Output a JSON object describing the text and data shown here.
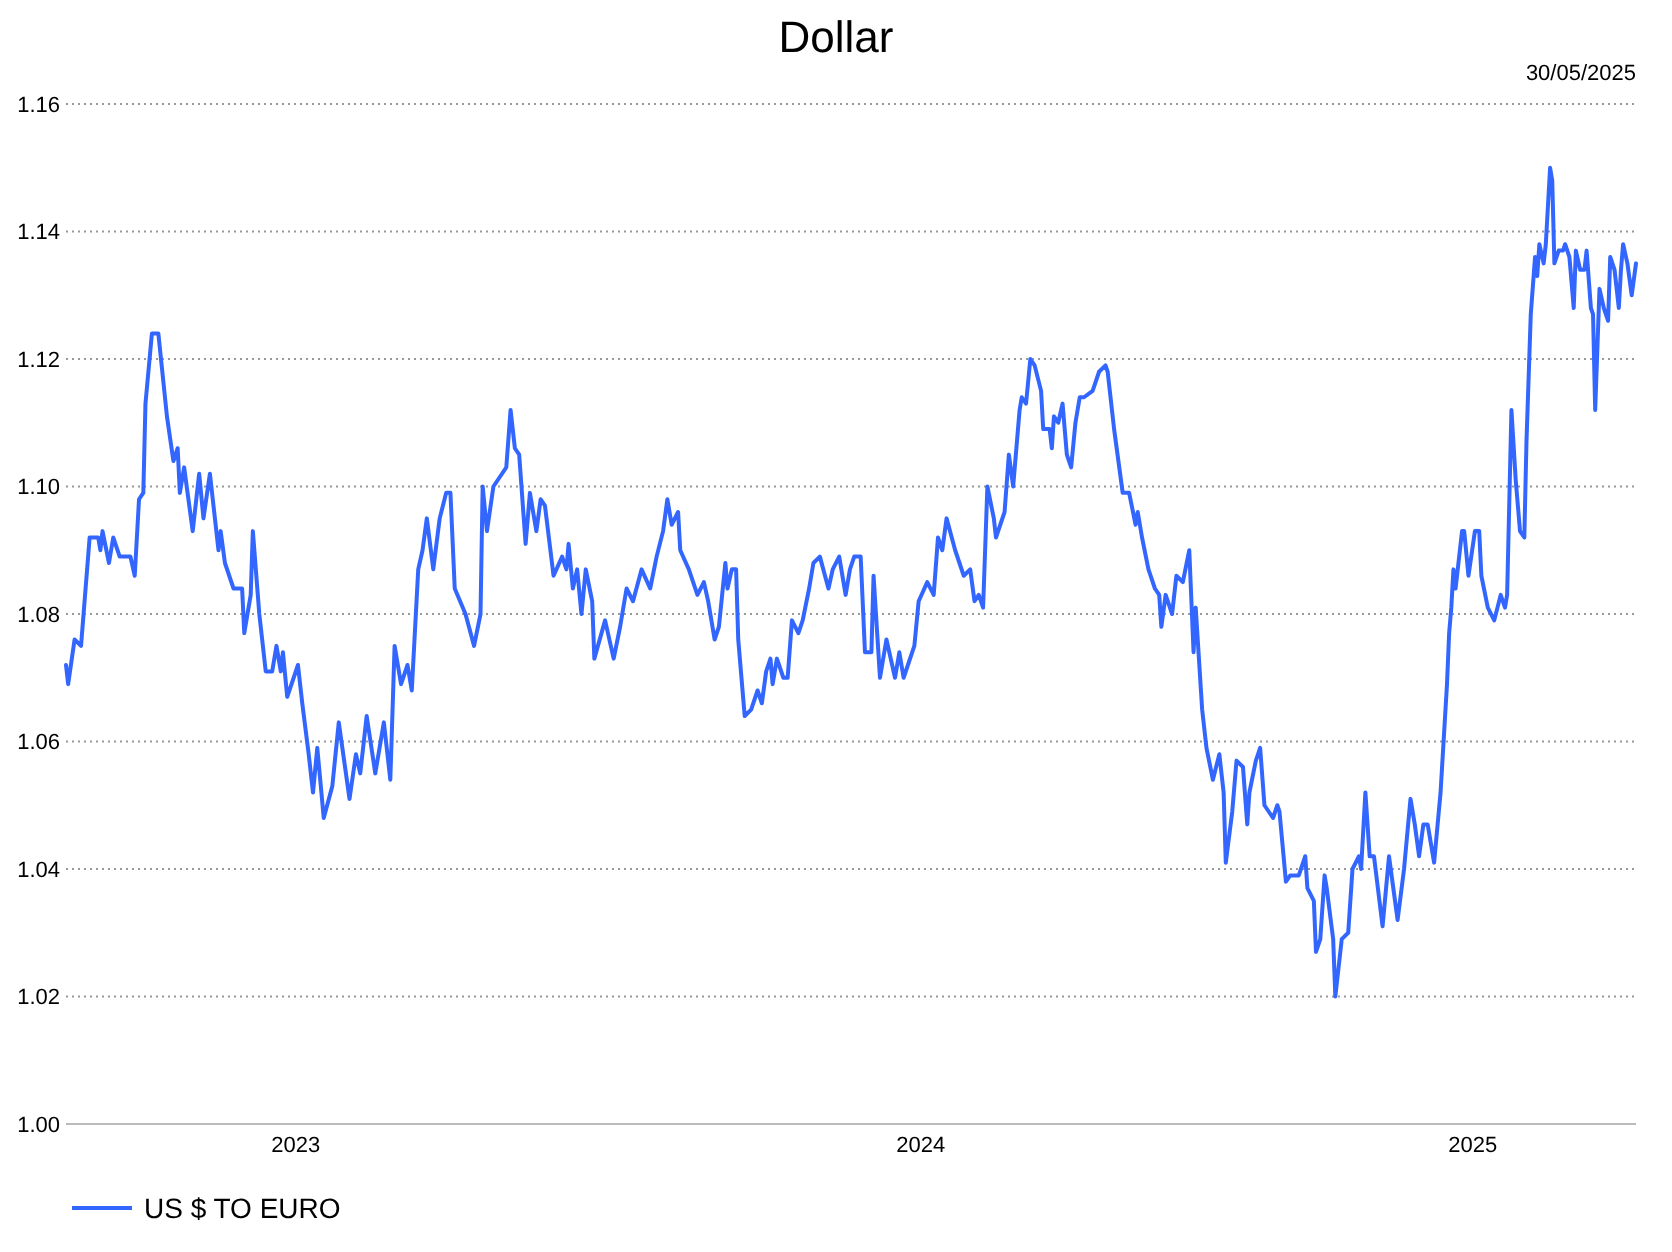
{
  "chart_data": {
    "type": "line",
    "title": "Dollar",
    "annotations": [
      "30/05/2025"
    ],
    "x": [
      "2023-05-30",
      "2023-05-31",
      "2023-06-03",
      "2023-06-06",
      "2023-06-10",
      "2023-06-14",
      "2023-06-15",
      "2023-06-16",
      "2023-06-19",
      "2023-06-21",
      "2023-06-24",
      "2023-06-29",
      "2023-07-01",
      "2023-07-03",
      "2023-07-05",
      "2023-07-06",
      "2023-07-09",
      "2023-07-12",
      "2023-07-16",
      "2023-07-19",
      "2023-07-21",
      "2023-07-22",
      "2023-07-24",
      "2023-07-28",
      "2023-07-31",
      "2023-08-02",
      "2023-08-05",
      "2023-08-09",
      "2023-08-10",
      "2023-08-12",
      "2023-08-16",
      "2023-08-20",
      "2023-08-21",
      "2023-08-24",
      "2023-08-25",
      "2023-08-28",
      "2023-08-31",
      "2023-09-03",
      "2023-09-05",
      "2023-09-07",
      "2023-09-08",
      "2023-09-10",
      "2023-09-15",
      "2023-09-17",
      "2023-09-20",
      "2023-09-22",
      "2023-09-24",
      "2023-09-27",
      "2023-10-01",
      "2023-10-04",
      "2023-10-09",
      "2023-10-12",
      "2023-10-14",
      "2023-10-17",
      "2023-10-21",
      "2023-10-25",
      "2023-10-28",
      "2023-10-30",
      "2023-11-02",
      "2023-11-05",
      "2023-11-07",
      "2023-11-10",
      "2023-11-12",
      "2023-11-14",
      "2023-11-17",
      "2023-11-20",
      "2023-11-23",
      "2023-11-25",
      "2023-11-27",
      "2023-12-02",
      "2023-12-06",
      "2023-12-09",
      "2023-12-10",
      "2023-12-12",
      "2023-12-15",
      "2023-12-19",
      "2023-12-21",
      "2023-12-23",
      "2023-12-25",
      "2023-12-27",
      "2023-12-30",
      "2024-01-01",
      "2024-01-04",
      "2024-01-06",
      "2024-01-08",
      "2024-01-12",
      "2024-01-16",
      "2024-01-18",
      "2024-01-19",
      "2024-01-21",
      "2024-01-23",
      "2024-01-25",
      "2024-01-27",
      "2024-01-30",
      "2024-01-31",
      "2024-02-05",
      "2024-02-09",
      "2024-02-12",
      "2024-02-15",
      "2024-02-18",
      "2024-02-22",
      "2024-02-26",
      "2024-02-29",
      "2024-03-03",
      "2024-03-05",
      "2024-03-07",
      "2024-03-10",
      "2024-03-11",
      "2024-03-15",
      "2024-03-19",
      "2024-03-22",
      "2024-03-24",
      "2024-03-27",
      "2024-03-29",
      "2024-04-01",
      "2024-04-02",
      "2024-04-04",
      "2024-04-06",
      "2024-04-07",
      "2024-04-10",
      "2024-04-13",
      "2024-04-16",
      "2024-04-18",
      "2024-04-20",
      "2024-04-22",
      "2024-04-23",
      "2024-04-25",
      "2024-04-28",
      "2024-04-30",
      "2024-05-02",
      "2024-05-05",
      "2024-05-07",
      "2024-05-10",
      "2024-05-12",
      "2024-05-15",
      "2024-05-19",
      "2024-05-21",
      "2024-05-24",
      "2024-05-27",
      "2024-05-29",
      "2024-05-31",
      "2024-06-03",
      "2024-06-05",
      "2024-06-08",
      "2024-06-09",
      "2024-06-12",
      "2024-06-15",
      "2024-06-19",
      "2024-06-21",
      "2024-06-23",
      "2024-06-25",
      "2024-06-28",
      "2024-06-30",
      "2024-07-04",
      "2024-07-07",
      "2024-07-09",
      "2024-07-11",
      "2024-07-13",
      "2024-07-17",
      "2024-07-21",
      "2024-07-24",
      "2024-07-26",
      "2024-07-28",
      "2024-07-30",
      "2024-08-01",
      "2024-08-04",
      "2024-08-05",
      "2024-08-09",
      "2024-08-11",
      "2024-08-13",
      "2024-08-16",
      "2024-08-17",
      "2024-08-19",
      "2024-08-21",
      "2024-08-23",
      "2024-08-26",
      "2024-08-27",
      "2024-08-30",
      "2024-08-31",
      "2024-09-01",
      "2024-09-03",
      "2024-09-05",
      "2024-09-07",
      "2024-09-09",
      "2024-09-11",
      "2024-09-13",
      "2024-09-15",
      "2024-09-19",
      "2024-09-22",
      "2024-09-25",
      "2024-09-26",
      "2024-09-29",
      "2024-10-03",
      "2024-10-06",
      "2024-10-09",
      "2024-10-10",
      "2024-10-12",
      "2024-10-15",
      "2024-10-18",
      "2024-10-20",
      "2024-10-21",
      "2024-10-23",
      "2024-10-26",
      "2024-10-28",
      "2024-10-31",
      "2024-11-03",
      "2024-11-05",
      "2024-11-06",
      "2024-11-09",
      "2024-11-11",
      "2024-11-14",
      "2024-11-17",
      "2024-11-19",
      "2024-11-20",
      "2024-11-23",
      "2024-11-25",
      "2024-11-28",
      "2024-11-30",
      "2024-12-01",
      "2024-12-04",
      "2024-12-06",
      "2024-12-08",
      "2024-12-12",
      "2024-12-14",
      "2024-12-15",
      "2024-12-18",
      "2024-12-20",
      "2024-12-24",
      "2024-12-27",
      "2024-12-28",
      "2024-12-31",
      "2025-01-01",
      "2025-01-03",
      "2025-01-05",
      "2025-01-06",
      "2025-01-09",
      "2025-01-10",
      "2025-01-13",
      "2025-01-16",
      "2025-01-18",
      "2025-01-21",
      "2025-01-22",
      "2025-01-24",
      "2025-01-26",
      "2025-01-28",
      "2025-02-01",
      "2025-02-04",
      "2025-02-06",
      "2025-02-08",
      "2025-02-11",
      "2025-02-14",
      "2025-02-16",
      "2025-02-18",
      "2025-02-20",
      "2025-02-22",
      "2025-02-25",
      "2025-02-28",
      "2025-03-03",
      "2025-03-04",
      "2025-03-05",
      "2025-03-06",
      "2025-03-07",
      "2025-03-10",
      "2025-03-11",
      "2025-03-13",
      "2025-03-16",
      "2025-03-18",
      "2025-03-19",
      "2025-03-22",
      "2025-03-25",
      "2025-03-28",
      "2025-03-30",
      "2025-03-31",
      "2025-04-02",
      "2025-04-04",
      "2025-04-06",
      "2025-04-08",
      "2025-04-09",
      "2025-04-11",
      "2025-04-13",
      "2025-04-14",
      "2025-04-15",
      "2025-04-17",
      "2025-04-18",
      "2025-04-20",
      "2025-04-21",
      "2025-04-22",
      "2025-04-24",
      "2025-04-26",
      "2025-04-27",
      "2025-04-29",
      "2025-05-01",
      "2025-05-02",
      "2025-05-04",
      "2025-05-06",
      "2025-05-07",
      "2025-05-09",
      "2025-05-10",
      "2025-05-11",
      "2025-05-13",
      "2025-05-15",
      "2025-05-17",
      "2025-05-18",
      "2025-05-20",
      "2025-05-22",
      "2025-05-23",
      "2025-05-24",
      "2025-05-26",
      "2025-05-28",
      "2025-05-30"
    ],
    "series": [
      {
        "name": "US $ TO EURO",
        "color": "#3366ff",
        "values": [
          1.072,
          1.069,
          1.076,
          1.075,
          1.092,
          1.092,
          1.09,
          1.093,
          1.088,
          1.092,
          1.089,
          1.089,
          1.086,
          1.098,
          1.099,
          1.113,
          1.124,
          1.124,
          1.111,
          1.104,
          1.106,
          1.099,
          1.103,
          1.093,
          1.102,
          1.095,
          1.102,
          1.09,
          1.093,
          1.088,
          1.084,
          1.084,
          1.077,
          1.083,
          1.093,
          1.08,
          1.071,
          1.071,
          1.075,
          1.071,
          1.074,
          1.067,
          1.072,
          1.066,
          1.058,
          1.052,
          1.059,
          1.048,
          1.053,
          1.063,
          1.051,
          1.058,
          1.055,
          1.064,
          1.055,
          1.063,
          1.054,
          1.075,
          1.069,
          1.072,
          1.068,
          1.087,
          1.09,
          1.095,
          1.087,
          1.095,
          1.099,
          1.099,
          1.084,
          1.08,
          1.075,
          1.08,
          1.1,
          1.093,
          1.1,
          1.102,
          1.103,
          1.112,
          1.106,
          1.105,
          1.091,
          1.099,
          1.093,
          1.098,
          1.097,
          1.086,
          1.089,
          1.087,
          1.091,
          1.084,
          1.087,
          1.08,
          1.087,
          1.082,
          1.073,
          1.079,
          1.073,
          1.078,
          1.084,
          1.082,
          1.087,
          1.084,
          1.089,
          1.093,
          1.098,
          1.094,
          1.096,
          1.09,
          1.087,
          1.083,
          1.085,
          1.082,
          1.076,
          1.078,
          1.088,
          1.084,
          1.087,
          1.087,
          1.076,
          1.064,
          1.065,
          1.068,
          1.066,
          1.071,
          1.073,
          1.069,
          1.073,
          1.07,
          1.07,
          1.079,
          1.077,
          1.079,
          1.084,
          1.088,
          1.089,
          1.084,
          1.087,
          1.089,
          1.083,
          1.087,
          1.089,
          1.089,
          1.074,
          1.074,
          1.086,
          1.07,
          1.076,
          1.07,
          1.074,
          1.07,
          1.072,
          1.075,
          1.082,
          1.085,
          1.083,
          1.092,
          1.09,
          1.095,
          1.09,
          1.086,
          1.087,
          1.082,
          1.083,
          1.081,
          1.1,
          1.095,
          1.092,
          1.096,
          1.105,
          1.1,
          1.112,
          1.114,
          1.113,
          1.12,
          1.119,
          1.115,
          1.109,
          1.109,
          1.106,
          1.111,
          1.11,
          1.113,
          1.105,
          1.103,
          1.11,
          1.114,
          1.114,
          1.115,
          1.118,
          1.119,
          1.118,
          1.109,
          1.099,
          1.099,
          1.094,
          1.096,
          1.092,
          1.087,
          1.084,
          1.083,
          1.078,
          1.083,
          1.08,
          1.086,
          1.085,
          1.09,
          1.074,
          1.081,
          1.065,
          1.059,
          1.054,
          1.058,
          1.052,
          1.041,
          1.049,
          1.057,
          1.056,
          1.047,
          1.052,
          1.057,
          1.059,
          1.05,
          1.048,
          1.05,
          1.049,
          1.038,
          1.039,
          1.039,
          1.042,
          1.037,
          1.035,
          1.027,
          1.029,
          1.039,
          1.037,
          1.029,
          1.02,
          1.029,
          1.03,
          1.04,
          1.042,
          1.04,
          1.052,
          1.042,
          1.042,
          1.031,
          1.042,
          1.037,
          1.032,
          1.04,
          1.051,
          1.047,
          1.042,
          1.047,
          1.047,
          1.041,
          1.052,
          1.069,
          1.077,
          1.081,
          1.087,
          1.084,
          1.093,
          1.093,
          1.086,
          1.093,
          1.093,
          1.086,
          1.081,
          1.079,
          1.083,
          1.081,
          1.083,
          1.112,
          1.101,
          1.093,
          1.092,
          1.107,
          1.127,
          1.136,
          1.133,
          1.138,
          1.135,
          1.138,
          1.15,
          1.148,
          1.135,
          1.137,
          1.137,
          1.138,
          1.136,
          1.128,
          1.137,
          1.134,
          1.134,
          1.137,
          1.128,
          1.127,
          1.112,
          1.131,
          1.128,
          1.126,
          1.136,
          1.134,
          1.128,
          1.134,
          1.138,
          1.135,
          1.13,
          1.135
        ]
      }
    ],
    "xlim": [
      "2023-05-30",
      "2025-05-30"
    ],
    "xticks": [
      {
        "value": "2023-09-14",
        "label": "2023"
      },
      {
        "value": "2024-07-01",
        "label": "2024"
      },
      {
        "value": "2025-03-15",
        "label": "2025"
      }
    ],
    "ylim": [
      1.0,
      1.16
    ],
    "yticks": [
      {
        "value": 1.0,
        "label": "1.00"
      },
      {
        "value": 1.02,
        "label": "1.02"
      },
      {
        "value": 1.04,
        "label": "1.04"
      },
      {
        "value": 1.06,
        "label": "1.06"
      },
      {
        "value": 1.08,
        "label": "1.08"
      },
      {
        "value": 1.1,
        "label": "1.10"
      },
      {
        "value": 1.12,
        "label": "1.12"
      },
      {
        "value": 1.14,
        "label": "1.14"
      },
      {
        "value": 1.16,
        "label": "1.16"
      }
    ],
    "grid": "y",
    "legend": "bottom left",
    "marker": "none",
    "line_style": "solid"
  }
}
